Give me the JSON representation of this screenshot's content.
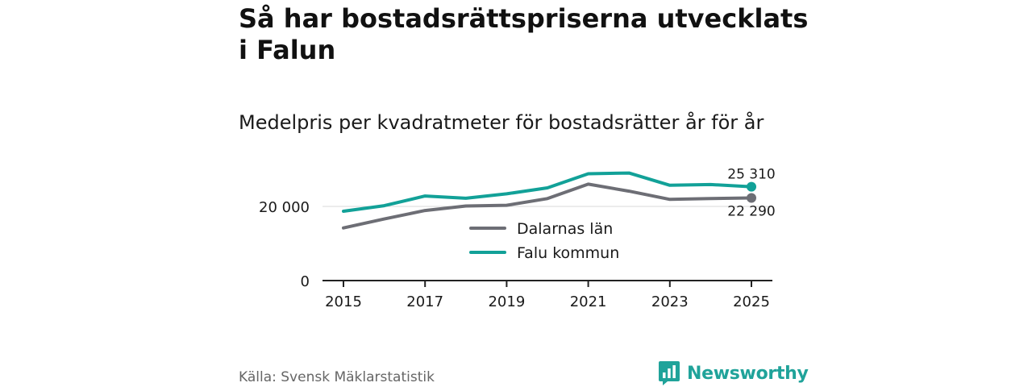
{
  "header": {
    "title": "Så har bostadsrättspriserna utvecklats i Falun",
    "subtitle": "Medelpris per kvadratmeter för bostadsrätter år för år"
  },
  "chart_data": {
    "type": "line",
    "x": [
      2015,
      2016,
      2017,
      2018,
      2019,
      2020,
      2021,
      2022,
      2023,
      2024,
      2025
    ],
    "x_ticks": [
      "2015",
      "2017",
      "2019",
      "2021",
      "2023",
      "2025"
    ],
    "y_ticks": [
      "0",
      "20 000"
    ],
    "ylim": [
      0,
      30000
    ],
    "grid": "horizontal at 20 000",
    "legend_position": "center",
    "series": [
      {
        "name": "Dalarnas län",
        "color": "#6d6e75",
        "values": [
          14200,
          16600,
          18900,
          20100,
          20300,
          22100,
          26000,
          24100,
          21900,
          22100,
          22290
        ],
        "end_label": "22 290"
      },
      {
        "name": "Falu kommun",
        "color": "#12a198",
        "values": [
          18700,
          20200,
          22800,
          22200,
          23400,
          25000,
          28800,
          29000,
          25700,
          25900,
          25310
        ],
        "end_label": "25 310"
      }
    ]
  },
  "footer": {
    "source": "Källa: Svensk Mäklarstatistik",
    "brand": "Newsworthy",
    "brand_color": "#20a39a"
  }
}
